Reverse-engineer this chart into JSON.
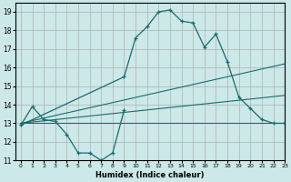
{
  "xlabel": "Humidex (Indice chaleur)",
  "bg_color": "#cce8e8",
  "grid_color": "#b0b0b0",
  "line_color": "#1a6b6b",
  "xlim": [
    -0.5,
    23
  ],
  "ylim": [
    11,
    19.5
  ],
  "yticks": [
    11,
    12,
    13,
    14,
    15,
    16,
    17,
    18,
    19
  ],
  "xticks": [
    0,
    1,
    2,
    3,
    4,
    5,
    6,
    7,
    8,
    9,
    10,
    11,
    12,
    13,
    14,
    15,
    16,
    17,
    18,
    19,
    20,
    21,
    22,
    23
  ],
  "xtick_labels": [
    "0",
    "1",
    "2",
    "3",
    "4",
    "5",
    "6",
    "7",
    "8",
    "9",
    "10",
    "11",
    "12",
    "13",
    "14",
    "15",
    "16",
    "17",
    "18",
    "19",
    "20",
    "21",
    "22",
    "23"
  ],
  "series1_x": [
    0,
    1,
    2,
    3,
    4,
    5,
    6,
    7,
    8,
    9
  ],
  "series1_y": [
    12.9,
    13.9,
    13.2,
    13.1,
    12.4,
    11.4,
    11.4,
    11.0,
    11.4,
    13.7
  ],
  "series2_x": [
    0,
    9,
    10,
    11,
    12,
    13,
    14,
    15,
    16,
    17,
    18,
    19,
    20,
    21,
    22,
    23
  ],
  "series2_y": [
    12.9,
    15.5,
    17.6,
    18.2,
    19.0,
    19.1,
    18.5,
    18.4,
    17.1,
    17.8,
    16.3,
    14.4,
    13.8,
    13.2,
    13.0,
    13.0
  ],
  "trend1_x": [
    0,
    23
  ],
  "trend1_y": [
    13.0,
    16.2
  ],
  "trend2_x": [
    0,
    23
  ],
  "trend2_y": [
    13.0,
    13.0
  ],
  "trend3_x": [
    0,
    23
  ],
  "trend3_y": [
    13.0,
    14.5
  ]
}
